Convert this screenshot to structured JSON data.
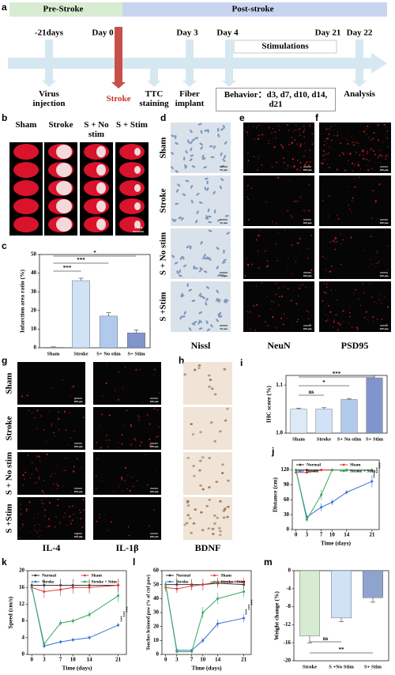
{
  "panels": {
    "a": {
      "panel": "a",
      "phases": [
        "Pre-Stroke",
        "Post-stroke"
      ],
      "days": [
        "-21days",
        "Day 0",
        "Day 3",
        "Day 4",
        "Day 21",
        "Day 22"
      ],
      "stimulations": "Stimulations",
      "events": [
        "Virus injection",
        "Stroke",
        "TTC staining",
        "Fiber implant",
        "Behavior：d3, d7, d10, d14, d21",
        "Analysis"
      ]
    },
    "b": {
      "panel": "b",
      "columns": [
        "Sham",
        "Stroke",
        "S + No stim",
        "S + Stim"
      ],
      "scale_bar": "1 cm"
    },
    "d": {
      "panel": "d",
      "rows": [
        "Sham",
        "Stroke",
        "S + No stim",
        "S +Stim"
      ],
      "label": "Nissl",
      "scale_bar": "50 μm"
    },
    "e": {
      "panel": "e",
      "label": "NeuN",
      "scale_bar": "100 μm"
    },
    "f": {
      "panel": "f",
      "label": "PSD95",
      "scale_bar": "100 μm"
    },
    "g": {
      "panel": "g",
      "rows": [
        "Sham",
        "Stroke",
        "S + No stim",
        "S +Stim"
      ],
      "columns": [
        "IL-4",
        "IL-1β"
      ],
      "scale_bar": "100 μm"
    },
    "h": {
      "panel": "h",
      "label": "BDNF"
    }
  },
  "chart_data": [
    {
      "type": "bar",
      "panel": "c",
      "y_label": "Infarction area ratio (%)",
      "categories": [
        "Sham",
        "Stroke",
        "S+ No stim",
        "S+ Stim"
      ],
      "values": [
        0.3,
        36,
        17,
        8
      ],
      "errors": [
        0.2,
        1.3,
        1.8,
        1.5
      ],
      "colors": [
        "#dde9f6",
        "#cfe2f6",
        "#b1caec",
        "#7f95cb"
      ],
      "ylim": [
        0,
        50
      ],
      "yticks": [
        0,
        10,
        20,
        30,
        40,
        50
      ],
      "significance": [
        "***",
        "***",
        "*"
      ]
    },
    {
      "type": "bar",
      "panel": "i",
      "y_label": "IHC score (%)",
      "categories": [
        "Sham",
        "Stroke",
        "S+ No stim",
        "S+ Stim"
      ],
      "values": [
        1.05,
        1.05,
        1.07,
        1.115
      ],
      "errors": [
        0.002,
        0.003,
        0.002,
        0.005
      ],
      "colors": [
        "#dde9f6",
        "#cfe2f6",
        "#b1caec",
        "#7f95cb"
      ],
      "ylim": [
        1.0,
        1.12
      ],
      "yticks": [
        {
          "value": 1.0,
          "label": "1.0"
        },
        {
          "value": 1.1,
          "label": "1.1"
        }
      ],
      "significance": [
        "ns",
        "*",
        "***"
      ]
    },
    {
      "type": "line",
      "panel": "j",
      "x_label": "Time (days)",
      "y_label": "Distance (cm)",
      "x": [
        0,
        3,
        7,
        10,
        14,
        21
      ],
      "xlim": [
        -1,
        23
      ],
      "xticks": [
        0,
        3,
        7,
        10,
        14,
        21
      ],
      "ylim": [
        0,
        140
      ],
      "yticks": [
        0,
        30,
        60,
        90,
        120
      ],
      "series": [
        {
          "name": "Normal",
          "color": "#333333",
          "values": [
            120,
            120,
            120,
            120,
            120,
            120
          ],
          "errors": [
            1,
            1,
            1,
            1,
            1,
            1
          ]
        },
        {
          "name": "Sham",
          "color": "#e03b3b",
          "values": [
            115,
            115,
            120,
            120,
            120,
            120
          ],
          "errors": [
            2,
            2,
            1,
            1,
            1,
            1
          ]
        },
        {
          "name": "Stroke",
          "color": "#3b6fd6",
          "values": [
            120,
            25,
            45,
            55,
            75,
            97
          ],
          "errors": [
            1,
            5,
            8,
            6,
            4,
            12
          ]
        },
        {
          "name": "Stroke + Stim",
          "color": "#3aa860",
          "values": [
            120,
            20,
            70,
            120,
            120,
            120
          ],
          "errors": [
            1,
            4,
            10,
            1,
            1,
            1
          ]
        }
      ],
      "significance": [
        "***",
        "***",
        "***"
      ]
    },
    {
      "type": "line",
      "panel": "k",
      "x_label": "Time (days)",
      "y_label": "Speed (cm/s)",
      "x": [
        0,
        3,
        7,
        10,
        14,
        21
      ],
      "xlim": [
        -1,
        23
      ],
      "xticks": [
        0,
        3,
        7,
        10,
        14,
        21
      ],
      "ylim": [
        0,
        20
      ],
      "yticks": [
        0,
        4,
        8,
        12,
        16,
        20
      ],
      "series": [
        {
          "name": "Normal",
          "color": "#333333",
          "values": [
            16.5,
            16.5,
            16.5,
            16.5,
            16.5,
            16.5
          ],
          "errors": [
            1,
            1.5,
            1.5,
            1.5,
            1.5,
            1.5
          ]
        },
        {
          "name": "Sham",
          "color": "#e03b3b",
          "values": [
            16,
            15,
            15.5,
            16,
            16,
            16.5
          ],
          "errors": [
            1,
            1.5,
            1.5,
            1.5,
            1.5,
            1.5
          ]
        },
        {
          "name": "Stroke",
          "color": "#3b6fd6",
          "values": [
            16,
            2,
            3,
            3.5,
            4,
            7
          ],
          "errors": [
            0.5,
            0.5,
            0.5,
            0.5,
            0.5,
            0.5
          ]
        },
        {
          "name": "Stroke + Stim",
          "color": "#3aa860",
          "values": [
            16,
            2.5,
            7.5,
            8,
            9.5,
            14
          ],
          "errors": [
            0.5,
            0.5,
            0.7,
            0.6,
            0.8,
            1.5
          ]
        }
      ],
      "significance": [
        "***",
        "***",
        "***"
      ]
    },
    {
      "type": "line",
      "panel": "l",
      "x_label": "Time (days)",
      "y_label": "Touches lesioned paw (% of ctrl paw)",
      "x": [
        0,
        3,
        7,
        10,
        14,
        21
      ],
      "xlim": [
        -1,
        23
      ],
      "xticks": [
        0,
        3,
        7,
        10,
        14,
        21
      ],
      "ylim": [
        0,
        60
      ],
      "yticks": [
        0,
        10,
        20,
        30,
        40,
        50,
        60
      ],
      "series": [
        {
          "name": "Normal",
          "color": "#333333",
          "values": [
            50,
            50,
            50,
            50,
            51,
            50
          ],
          "errors": [
            2,
            5,
            4,
            4,
            3,
            3
          ]
        },
        {
          "name": "Sham",
          "color": "#e03b3b",
          "values": [
            48,
            47,
            49,
            50,
            52,
            52
          ],
          "errors": [
            3,
            3,
            3,
            3,
            3,
            3
          ]
        },
        {
          "name": "Stroke",
          "color": "#3b6fd6",
          "values": [
            50,
            3,
            3,
            10,
            22,
            26
          ],
          "errors": [
            2,
            1,
            1,
            2,
            3,
            3
          ]
        },
        {
          "name": "Stroke +Stim",
          "color": "#3aa860",
          "values": [
            50,
            2,
            2,
            30,
            40,
            45
          ],
          "errors": [
            2,
            1,
            1,
            4,
            4,
            4
          ]
        }
      ],
      "significance": [
        "***",
        "***",
        "***"
      ]
    },
    {
      "type": "bar",
      "panel": "m",
      "y_label": "Weight change (%)",
      "categories": [
        "Stroke",
        "S +No Stim",
        "S+ Stim"
      ],
      "values": [
        -14.5,
        -10.5,
        -6
      ],
      "errors": [
        1.5,
        0.8,
        1
      ],
      "colors": [
        "#d7ead2",
        "#cfe2f6",
        "#8fa3cf"
      ],
      "ylim": [
        -20,
        0
      ],
      "yticks": [
        -20,
        -16,
        -12,
        -8,
        -4,
        0
      ],
      "significance": [
        "ns",
        "**"
      ]
    }
  ]
}
